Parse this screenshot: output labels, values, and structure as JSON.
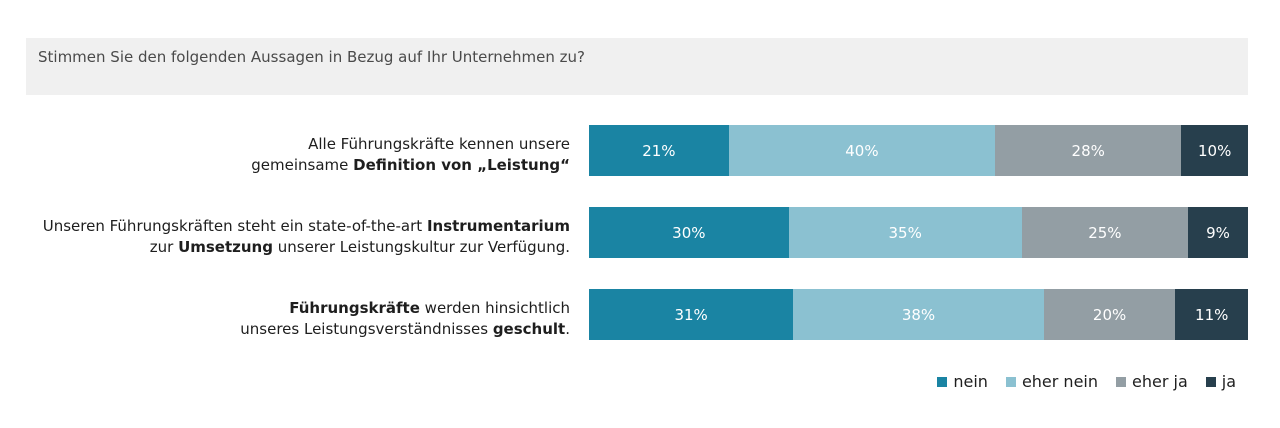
{
  "question": "Stimmen Sie den folgenden Aussagen in Bezug auf Ihr Unternehmen zu?",
  "colors": {
    "nein": "#1a84a3",
    "eher_nein": "#8bc1d1",
    "eher_ja": "#939ea4",
    "ja": "#273f4d"
  },
  "rows": [
    {
      "line1": [
        {
          "t": "Alle Führungskräfte kennen unsere",
          "b": false
        }
      ],
      "line2": [
        {
          "t": "gemeinsame ",
          "b": false
        },
        {
          "t": "Definition von „Leistung“",
          "b": true
        }
      ]
    },
    {
      "line1": [
        {
          "t": "Unseren Führungskräften steht ein state-of-the-art ",
          "b": false
        },
        {
          "t": "Instrumentarium",
          "b": true
        }
      ],
      "line2": [
        {
          "t": "zur ",
          "b": false
        },
        {
          "t": "Umsetzung",
          "b": true
        },
        {
          "t": " unserer Leistungskultur zur Verfügung.",
          "b": false
        }
      ]
    },
    {
      "line1": [
        {
          "t": "Führungskräfte",
          "b": true
        },
        {
          "t": " werden hinsichtlich",
          "b": false
        }
      ],
      "line2": [
        {
          "t": "unseres Leistungsverständnisses ",
          "b": false
        },
        {
          "t": "geschult",
          "b": true
        },
        {
          "t": ".",
          "b": false
        }
      ]
    }
  ],
  "chart_data": {
    "type": "bar",
    "orientation": "horizontal-stacked-100",
    "title": "",
    "categories": [
      "Alle Führungskräfte kennen unsere gemeinsame Definition von „Leistung“",
      "Unseren Führungskräften steht ein state-of-the-art Instrumentarium zur Umsetzung unserer Leistungskultur zur Verfügung.",
      "Führungskräfte werden hinsichtlich unseres Leistungsverständnisses geschult."
    ],
    "series": [
      {
        "name": "nein",
        "key": "nein",
        "values": [
          21,
          30,
          31
        ],
        "labels": [
          "21%",
          "30%",
          "31%"
        ]
      },
      {
        "name": "eher nein",
        "key": "eher_nein",
        "values": [
          40,
          35,
          38
        ],
        "labels": [
          "40%",
          "35%",
          "38%"
        ]
      },
      {
        "name": "eher ja",
        "key": "eher_ja",
        "values": [
          28,
          25,
          20
        ],
        "labels": [
          "28%",
          "25%",
          "20%"
        ]
      },
      {
        "name": "ja",
        "key": "ja",
        "values": [
          10,
          9,
          11
        ],
        "labels": [
          "10%",
          "9%",
          "11%"
        ]
      }
    ],
    "legend": "bottom-right",
    "grid": false
  }
}
